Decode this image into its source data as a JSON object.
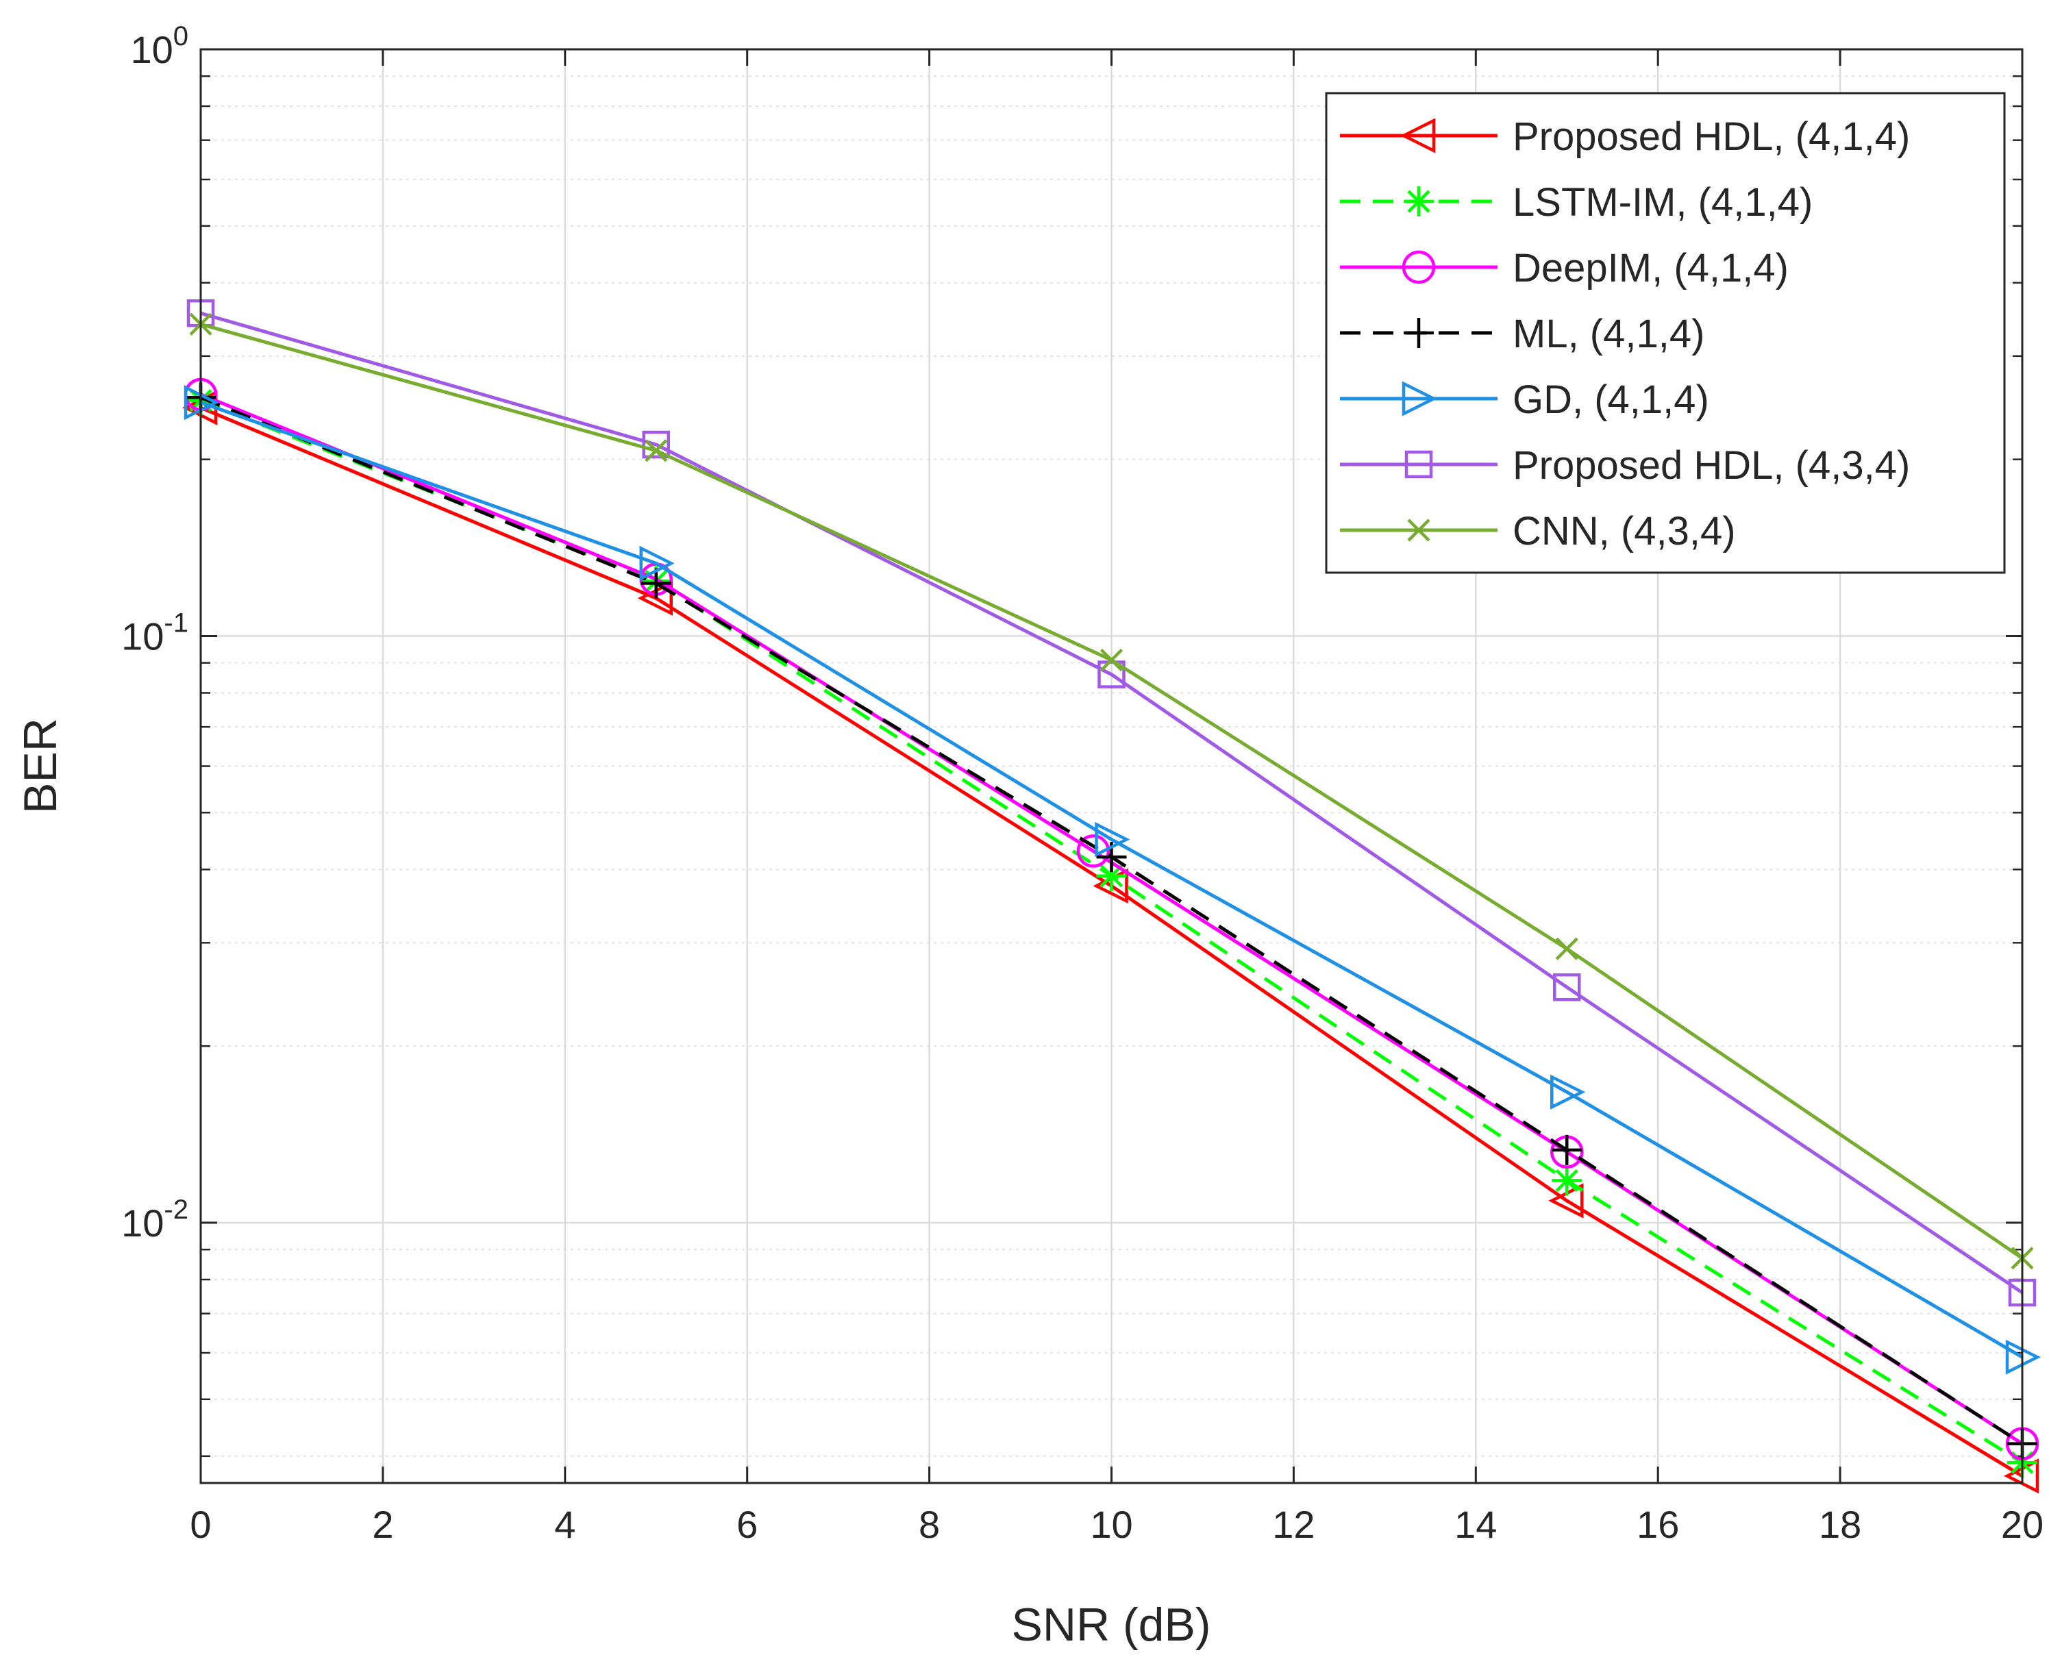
{
  "chart_data": {
    "type": "line",
    "xlabel": "SNR (dB)",
    "ylabel": "BER",
    "x_ticks": [
      "0",
      "2",
      "4",
      "6",
      "8",
      "10",
      "12",
      "14",
      "16",
      "18",
      "20"
    ],
    "y_ticks": [
      {
        "value": 1,
        "base": "10",
        "exp": "0"
      },
      {
        "value": 0.1,
        "base": "10",
        "exp": "-1"
      },
      {
        "value": 0.01,
        "base": "10",
        "exp": "-2"
      }
    ],
    "xlim": [
      0,
      20
    ],
    "ylim": [
      0.0036,
      1
    ],
    "yscale": "log",
    "grid": true,
    "legend_position": "top-right",
    "series": [
      {
        "name": "Proposed HDL, (4,1,4)",
        "color": "#ff0000",
        "dash": "solid",
        "marker": "triangle-left",
        "x": [
          0,
          5,
          10,
          15,
          20
        ],
        "y": [
          0.245,
          0.116,
          0.0375,
          0.0109,
          0.0037
        ]
      },
      {
        "name": "LSTM-IM, (4,1,4)",
        "color": "#00ff00",
        "dash": "dashed",
        "marker": "asterisk",
        "x": [
          0,
          5,
          10,
          15,
          20
        ],
        "y": [
          0.252,
          0.124,
          0.039,
          0.0118,
          0.0039
        ]
      },
      {
        "name": "DeepIM, (4,1,4)",
        "color": "#ff00ff",
        "dash": "solid",
        "marker": "circle",
        "x": [
          0,
          5,
          9.8,
          15,
          20
        ],
        "y": [
          0.258,
          0.125,
          0.043,
          0.0132,
          0.0042
        ]
      },
      {
        "name": "ML, (4,1,4)",
        "color": "#000000",
        "dash": "dashed",
        "marker": "plus",
        "x": [
          0,
          5,
          10,
          15,
          20
        ],
        "y": [
          0.255,
          0.123,
          0.042,
          0.0133,
          0.0042
        ]
      },
      {
        "name": "GD, (4,1,4)",
        "color": "#1e90e6",
        "dash": "solid",
        "marker": "triangle-right",
        "x": [
          0,
          5,
          10,
          15,
          20
        ],
        "y": [
          0.25,
          0.133,
          0.045,
          0.0167,
          0.0059
        ]
      },
      {
        "name": "Proposed HDL, (4,3,4)",
        "color": "#a05ae6",
        "dash": "solid",
        "marker": "square",
        "x": [
          0,
          5,
          10,
          15,
          20
        ],
        "y": [
          0.355,
          0.212,
          0.086,
          0.0252,
          0.0076
        ]
      },
      {
        "name": "CNN, (4,3,4)",
        "color": "#77ac30",
        "dash": "solid",
        "marker": "x",
        "x": [
          0,
          5,
          10,
          15,
          20
        ],
        "y": [
          0.34,
          0.207,
          0.091,
          0.0293,
          0.0087
        ]
      }
    ]
  }
}
